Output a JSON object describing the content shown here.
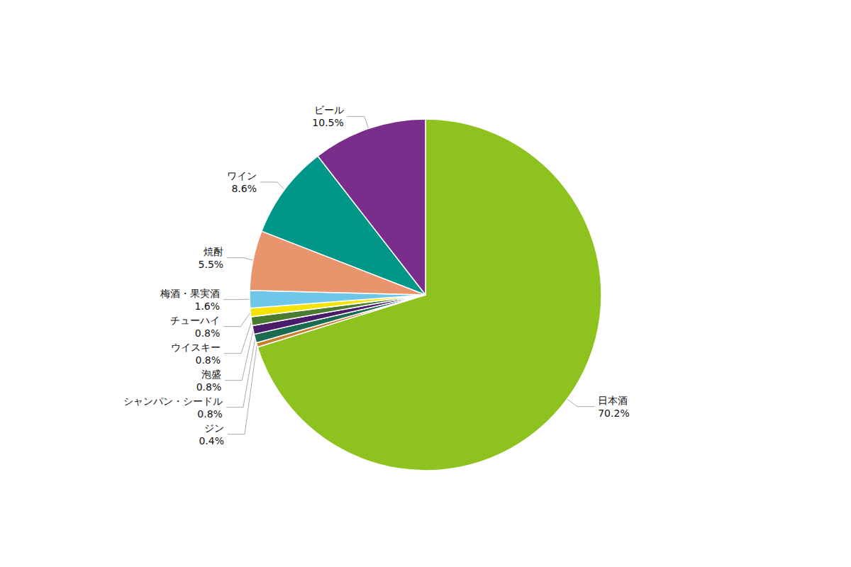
{
  "chart_data": {
    "type": "pie",
    "categories": [
      "日本酒",
      "ジン",
      "シャンパン・シードル",
      "泡盛",
      "ウイスキー",
      "チューハイ",
      "梅酒・果実酒",
      "焼酎",
      "ワイン",
      "ビール"
    ],
    "values": [
      70.2,
      0.4,
      0.8,
      0.8,
      0.8,
      0.8,
      1.6,
      5.5,
      8.6,
      10.5
    ],
    "value_labels": [
      "70.2%",
      "0.4%",
      "0.8%",
      "0.8%",
      "0.8%",
      "0.8%",
      "1.6%",
      "5.5%",
      "8.6%",
      "10.5%"
    ],
    "colors": [
      "#8dc21f",
      "#c97e2a",
      "#1a6b50",
      "#4a1a6b",
      "#4a7c2f",
      "#f5e400",
      "#6ec6e8",
      "#e8956d",
      "#009688",
      "#7b2d8b"
    ],
    "data_labels": true
  }
}
